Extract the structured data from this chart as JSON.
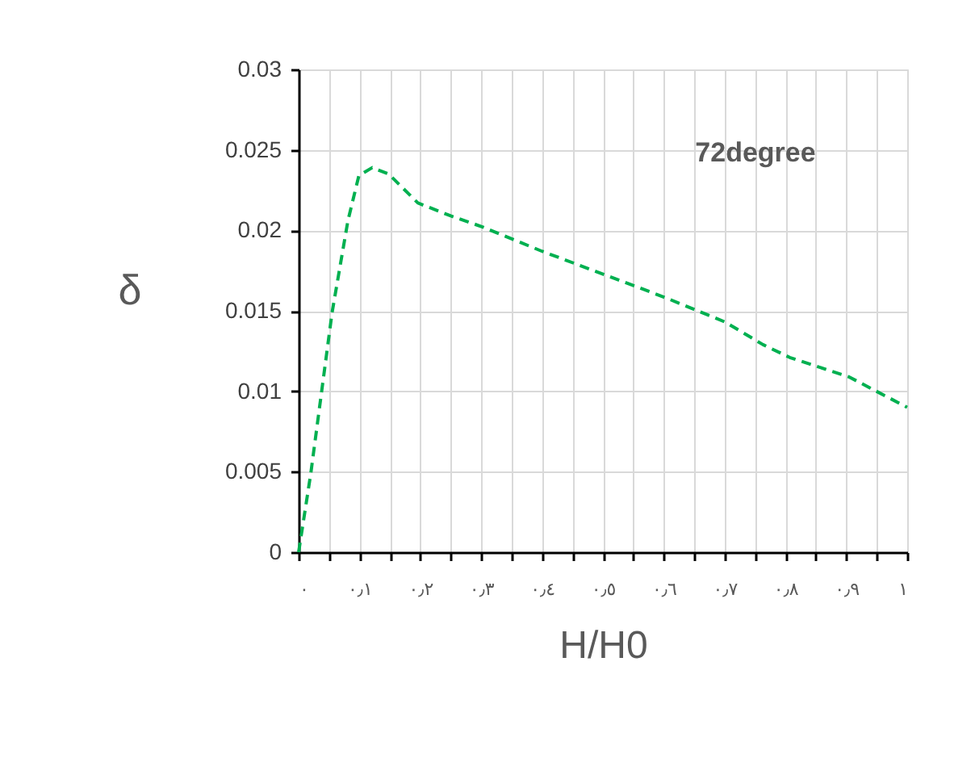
{
  "chart_data": {
    "type": "line",
    "xlabel": "H/H0",
    "ylabel": "δ",
    "annotations": [
      "72degree"
    ],
    "x": [
      0,
      0.02,
      0.055,
      0.081,
      0.099,
      0.121,
      0.148,
      0.196,
      0.25,
      0.303,
      0.4,
      0.506,
      0.604,
      0.701,
      0.763,
      0.807,
      0.904,
      1.0
    ],
    "series": [
      {
        "color": "#00b050",
        "values": [
          0,
          0.0049,
          0.0149,
          0.0206,
          0.0234,
          0.0239,
          0.0235,
          0.0217,
          0.0209,
          0.0202,
          0.0187,
          0.0172,
          0.0158,
          0.0143,
          0.0129,
          0.0121,
          0.0109,
          0.009
        ]
      }
    ],
    "line_style": "dashed",
    "marker": "none",
    "xlim": [
      0,
      1
    ],
    "ylim": [
      0,
      0.03
    ],
    "xticks": [
      {
        "value": 0,
        "label": "٠"
      },
      {
        "value": 0.05,
        "label": null
      },
      {
        "value": 0.1,
        "label": "٠٫١"
      },
      {
        "value": 0.15,
        "label": null
      },
      {
        "value": 0.2,
        "label": "٠٫٢"
      },
      {
        "value": 0.25,
        "label": null
      },
      {
        "value": 0.3,
        "label": "٠٫٣"
      },
      {
        "value": 0.35,
        "label": null
      },
      {
        "value": 0.4,
        "label": "٠٫٤"
      },
      {
        "value": 0.45,
        "label": null
      },
      {
        "value": 0.5,
        "label": "٠٫٥"
      },
      {
        "value": 0.55,
        "label": null
      },
      {
        "value": 0.6,
        "label": "٠٫٦"
      },
      {
        "value": 0.65,
        "label": null
      },
      {
        "value": 0.7,
        "label": "٠٫٧"
      },
      {
        "value": 0.75,
        "label": null
      },
      {
        "value": 0.8,
        "label": "٠٫٨"
      },
      {
        "value": 0.85,
        "label": null
      },
      {
        "value": 0.9,
        "label": "٠٫٩"
      },
      {
        "value": 0.95,
        "label": null
      },
      {
        "value": 1,
        "label": "١"
      }
    ],
    "yticks": [
      0,
      0.005,
      0.01,
      0.015,
      0.02,
      0.025,
      0.03
    ],
    "grid": true,
    "legend": false
  }
}
